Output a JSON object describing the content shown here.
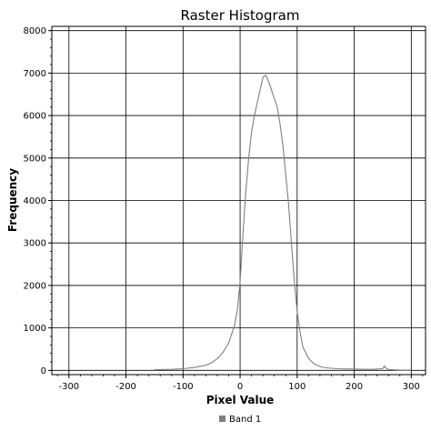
{
  "chart_data": {
    "type": "line",
    "title": "Raster Histogram",
    "xlabel": "Pixel Value",
    "ylabel": "Frequency",
    "xlim": [
      -330,
      325
    ],
    "ylim": [
      -100,
      8100
    ],
    "x_ticks": [
      -300,
      -200,
      -100,
      0,
      100,
      200,
      300
    ],
    "x_tick_labels": [
      "-300",
      "-200",
      "-100",
      "0",
      "100",
      "200",
      "300"
    ],
    "y_ticks": [
      0,
      1000,
      2000,
      3000,
      4000,
      5000,
      6000,
      7000,
      8000
    ],
    "y_tick_labels": [
      "0",
      "1000",
      "2000",
      "3000",
      "4000",
      "5000",
      "6000",
      "7000",
      "8000"
    ],
    "grid": true,
    "legend_position": "bottom",
    "series": [
      {
        "name": "Band 1",
        "color": "#808080",
        "x": [
          -150,
          -120,
          -100,
          -80,
          -60,
          -50,
          -40,
          -30,
          -20,
          -10,
          -5,
          0,
          5,
          10,
          15,
          20,
          25,
          30,
          35,
          40,
          45,
          50,
          55,
          60,
          65,
          70,
          75,
          80,
          85,
          90,
          95,
          100,
          105,
          110,
          120,
          130,
          140,
          150,
          170,
          200,
          230,
          250,
          253,
          255,
          260,
          280,
          300
        ],
        "y": [
          15,
          25,
          40,
          70,
          120,
          180,
          280,
          420,
          650,
          1050,
          1400,
          2100,
          3200,
          4200,
          5000,
          5600,
          6000,
          6300,
          6600,
          6900,
          6950,
          6800,
          6600,
          6400,
          6200,
          5800,
          5300,
          4600,
          3900,
          3000,
          2100,
          1400,
          900,
          550,
          280,
          150,
          90,
          60,
          40,
          30,
          25,
          40,
          100,
          60,
          20,
          10,
          5
        ]
      }
    ]
  }
}
